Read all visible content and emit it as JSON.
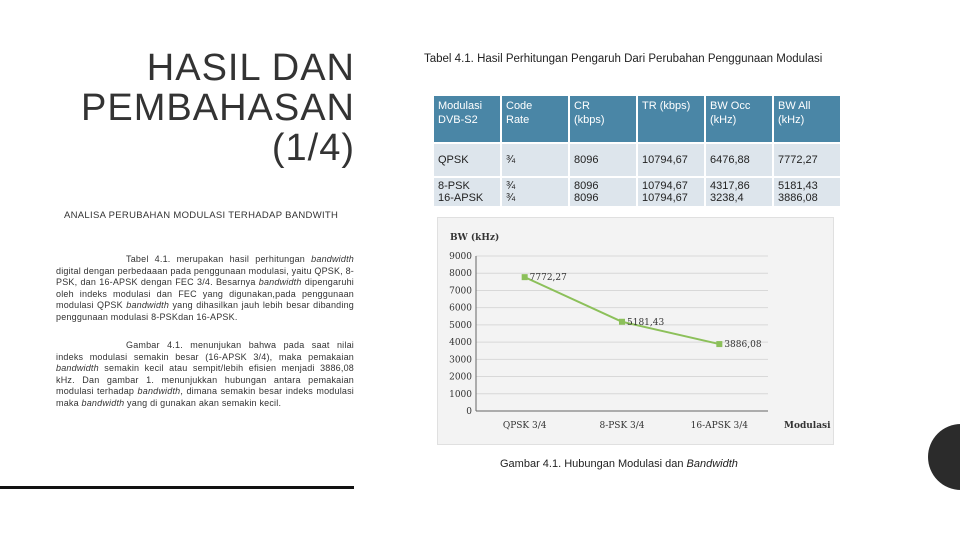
{
  "slide": {
    "title_lines": [
      "HASIL DAN",
      "PEMBAHASAN",
      "(1/4)"
    ],
    "subtitle": "ANALISA PERUBAHAN MODULASI TERHADAP BANDWITH"
  },
  "paragraphs": {
    "p1": [
      "Tabel 4.1. merupakan hasil perhitungan ",
      "bandwidth",
      " digital dengan perbedaaan pada penggunaan modulasi, yaitu QPSK, 8-PSK, dan 16-APSK dengan FEC 3/4. Besarnya ",
      "bandwidth",
      " dipengaruhi oleh indeks modulasi dan FEC yang digunakan,pada penggunaan modulasi QPSK ",
      "bandwidth",
      " yang dihasilkan jauh lebih besar dibanding penggunaan modulasi 8-PSKdan 16-APSK."
    ],
    "p2": [
      "Gambar 4.1. menunjukan bahwa pada saat nilai indeks modulasi semakin besar (16-APSK 3/4), maka pemakaian ",
      "bandwidth",
      " semakin kecil atau sempit/lebih efisien menjadi 3886,08 kHz. Dan gambar 1. menunjukkan hubungan antara pemakaian modulasi terhadap ",
      "bandwidth",
      ", dimana semakin besar indeks modulasi maka ",
      "bandwidth",
      " yang di gunakan akan semakin kecil."
    ]
  },
  "table": {
    "caption": "Tabel 4.1. Hasil Perhitungan Pengaruh Dari Perubahan Penggunaan Modulasi",
    "headers": [
      [
        "Modulasi",
        "DVB-S2"
      ],
      [
        "Code",
        "Rate"
      ],
      [
        "CR",
        "(kbps)"
      ],
      [
        "TR (kbps)"
      ],
      [
        "BW Occ",
        "(kHz)"
      ],
      [
        "BW All",
        "(kHz)"
      ]
    ],
    "rows": [
      [
        [
          "QPSK"
        ],
        [
          "¾"
        ],
        [
          "8096"
        ],
        [
          "10794,67"
        ],
        [
          "6476,88"
        ],
        [
          "7772,27"
        ]
      ],
      [
        [
          "8-PSK",
          "16-APSK"
        ],
        [
          "¾",
          "¾"
        ],
        [
          "8096",
          "8096"
        ],
        [
          "10794,67",
          "10794,67"
        ],
        [
          "4317,86",
          "3238,4"
        ],
        [
          "5181,43",
          "3886,08"
        ]
      ]
    ]
  },
  "chart_data": {
    "type": "line",
    "ylabel": "BW (kHz)",
    "xlabel": "Modulasi",
    "categories": [
      "QPSK 3/4",
      "8-PSK 3/4",
      "16-APSK 3/4"
    ],
    "values": [
      7772.27,
      5181.43,
      3886.08
    ],
    "data_labels": [
      "7772,27",
      "5181,43",
      "3886,08"
    ],
    "ylim": [
      0,
      9000
    ],
    "yticks": [
      0,
      1000,
      2000,
      3000,
      4000,
      5000,
      6000,
      7000,
      8000,
      9000
    ],
    "grid": true,
    "line_color": "#8cc05a"
  },
  "figure": {
    "caption_prefix": "Gambar 4.1. Hubungan Modulasi dan ",
    "caption_em": "Bandwidth"
  }
}
